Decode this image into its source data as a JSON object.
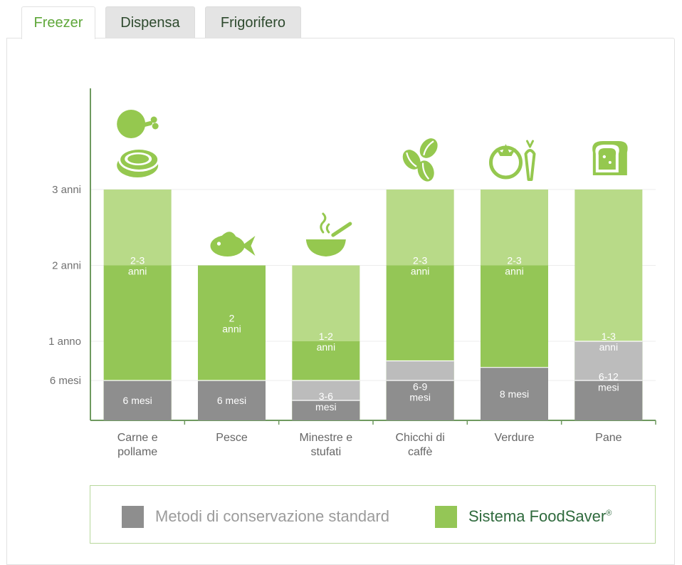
{
  "tabs": [
    {
      "label": "Freezer",
      "active": true
    },
    {
      "label": "Dispensa",
      "active": false
    },
    {
      "label": "Frigorifero",
      "active": false
    }
  ],
  "legend": {
    "standard_label": "Metodi di conservazione standard",
    "foodsaver_label": "Sistema FoodSaver",
    "foodsaver_mark": "®"
  },
  "colors": {
    "std_dark": "#8e8e8e",
    "std_light": "#bcbcbc",
    "fs_dark": "#94c656",
    "fs_light": "#b8da88",
    "icon": "#95c84f",
    "accent": "#5fa73a"
  },
  "chart_data": {
    "type": "bar",
    "y_ticks": [
      {
        "value": 6,
        "label": "6 mesi"
      },
      {
        "value": 12,
        "label": "1 anno"
      },
      {
        "value": 24,
        "label": "2 anni"
      },
      {
        "value": 36,
        "label": "3 anni"
      }
    ],
    "ylim": [
      0,
      36
    ],
    "grid": true,
    "categories": [
      {
        "label": [
          "Carne e",
          "pollame"
        ],
        "icon": "meat-and-chicken-icon",
        "standard": {
          "min": 6,
          "max": 6,
          "label": [
            "6 mesi"
          ]
        },
        "foodsaver": {
          "min": 24,
          "max": 36,
          "label": [
            "2-3",
            "anni"
          ]
        }
      },
      {
        "label": [
          "Pesce"
        ],
        "icon": "fish-icon",
        "standard": {
          "min": 6,
          "max": 6,
          "label": [
            "6 mesi"
          ]
        },
        "foodsaver": {
          "min": 24,
          "max": 24,
          "label": [
            "2",
            "anni"
          ]
        }
      },
      {
        "label": [
          "Minestre e",
          "stufati"
        ],
        "icon": "soup-bowl-icon",
        "standard": {
          "min": 3,
          "max": 6,
          "label": [
            "3-6",
            "mesi"
          ]
        },
        "foodsaver": {
          "min": 12,
          "max": 24,
          "label": [
            "1-2",
            "anni"
          ]
        }
      },
      {
        "label": [
          "Chicchi di",
          "caffè"
        ],
        "icon": "coffee-beans-icon",
        "standard": {
          "min": 6,
          "max": 9,
          "label": [
            "6-9",
            "mesi"
          ]
        },
        "foodsaver": {
          "min": 24,
          "max": 36,
          "label": [
            "2-3",
            "anni"
          ]
        }
      },
      {
        "label": [
          "Verdure"
        ],
        "icon": "tomato-carrot-icon",
        "standard": {
          "min": 8,
          "max": 8,
          "label": [
            "8 mesi"
          ]
        },
        "foodsaver": {
          "min": 24,
          "max": 36,
          "label": [
            "2-3",
            "anni"
          ]
        }
      },
      {
        "label": [
          "Pane"
        ],
        "icon": "bread-icon",
        "standard": {
          "min": 6,
          "max": 12,
          "label": [
            "6-12",
            "mesi"
          ]
        },
        "foodsaver": {
          "min": 12,
          "max": 36,
          "label": [
            "1-3",
            "anni"
          ]
        }
      }
    ]
  }
}
